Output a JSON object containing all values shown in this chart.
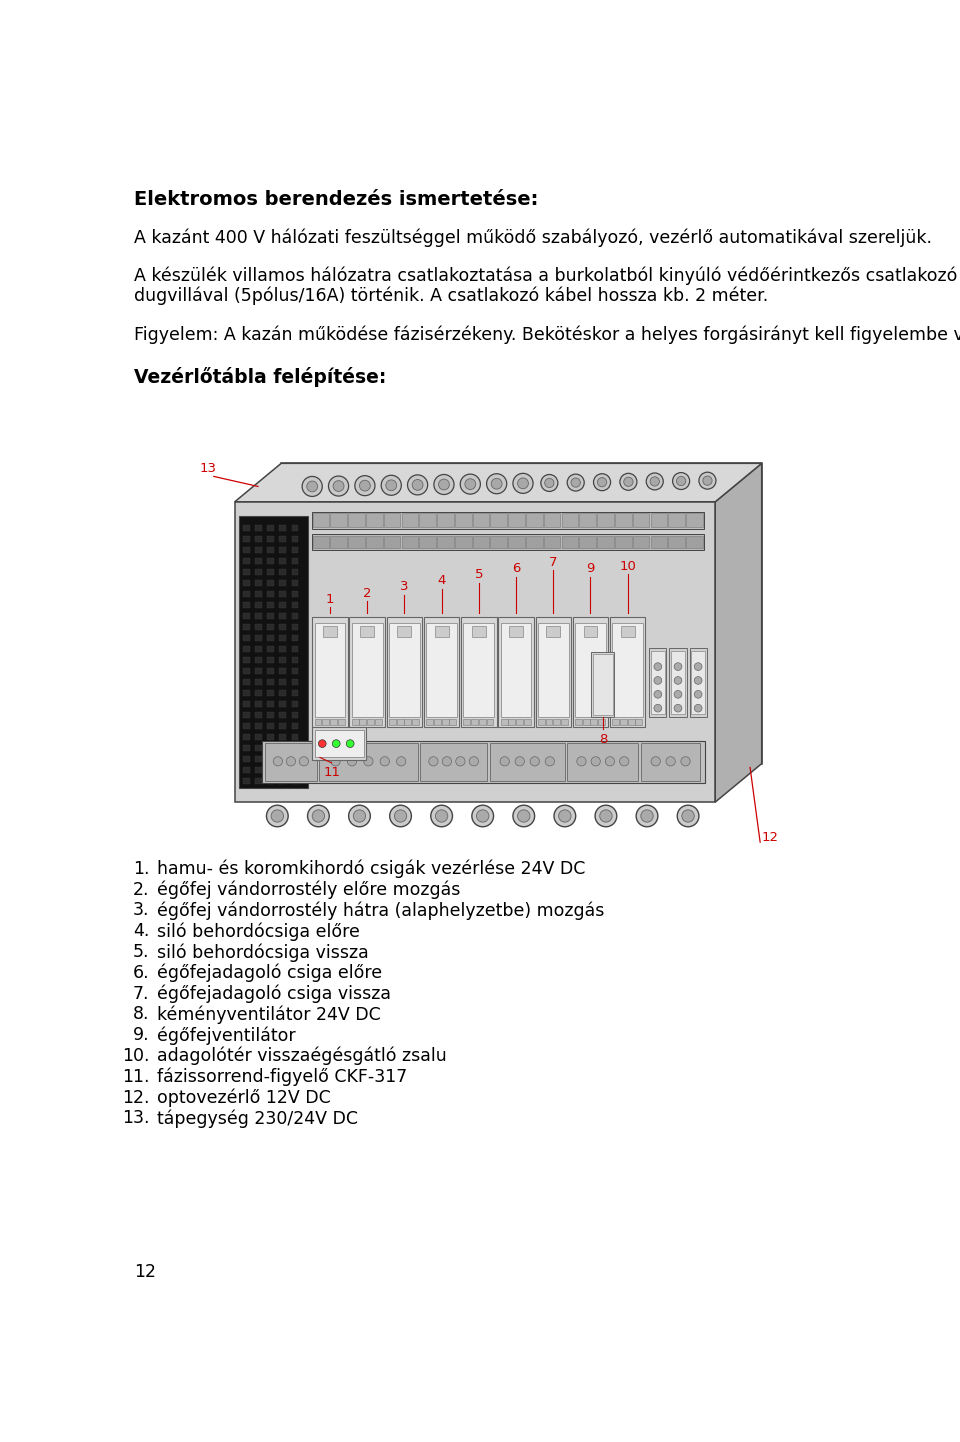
{
  "bg_color": "#ffffff",
  "title": "Elektromos berendezés ismertetése:",
  "para1": "A kazánt 400 V hálózati feszültséggel működő szabályozó, vezérlő automatikával szereljük.",
  "para2a": "A készülék villamos hálózatra csatlakoztatása a burkolatból kinyúló védőérintkezős csatlakozó kábellel, ill.",
  "para2b": "dugvillával (5pólus/16A) történik. A csatlakozó kábel hossza kb. 2 méter.",
  "para3": "Figyelem: A kazán működése fázisérzékeny. Bekötéskor a helyes forgásirányt kell figyelembe venni.",
  "section_title": "Vezérlőtábla felépítése:",
  "list_items": [
    [
      "1.",
      "hamu- és koromkihordó csigák vezérlése 24V DC"
    ],
    [
      "2.",
      "égőfej vándorrostély előre mozgás"
    ],
    [
      "3.",
      "égőfej vándorrostély hátra (alaphelyzetbe) mozgás"
    ],
    [
      "4.",
      "siló behordócsiga előre"
    ],
    [
      "5.",
      "siló behordócsiga vissza"
    ],
    [
      "6.",
      "égőfejadagoló csiga előre"
    ],
    [
      "7.",
      "égőfejadagoló csiga vissza"
    ],
    [
      "8.",
      "kéményventilátor 24V DC"
    ],
    [
      "9.",
      "égőfejventilátor"
    ],
    [
      "10.",
      "adagolótér visszaégésgátló zsalu"
    ],
    [
      "11.",
      "fázissorrend-figyelő CKF-317"
    ],
    [
      "12.",
      "optovezérlő 12V DC"
    ],
    [
      "13.",
      "tápegység 230/24V DC"
    ]
  ],
  "page_number": "12",
  "label_color": "#cc0000",
  "outline_color": "#444444"
}
